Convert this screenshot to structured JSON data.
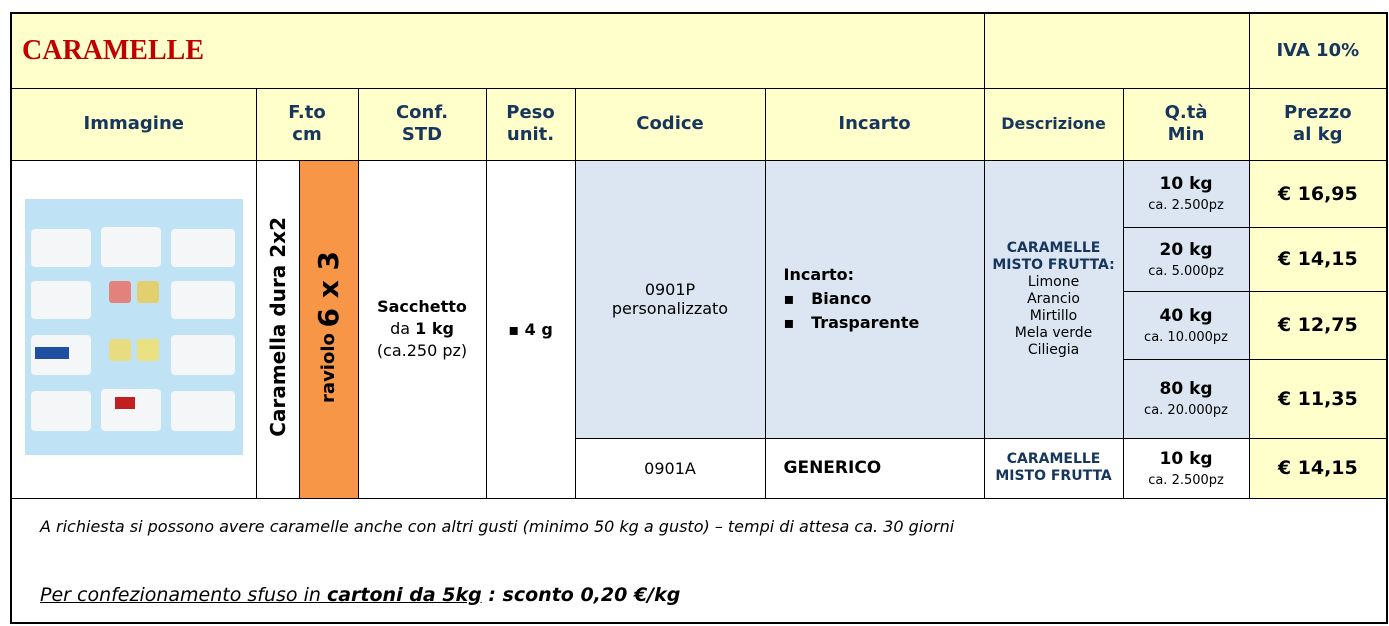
{
  "header": {
    "title": "CARAMELLE",
    "vat": "IVA 10%"
  },
  "table": {
    "columns": [
      [
        "Immagine"
      ],
      [
        "F.to",
        "cm"
      ],
      [
        "Conf.",
        "STD"
      ],
      [
        "Peso",
        "unit."
      ],
      [
        "Codice"
      ],
      [
        "Incarto"
      ],
      [
        "Descrizione"
      ],
      [
        "Q.tà",
        "Min"
      ],
      [
        "Prezzo",
        "al kg"
      ]
    ],
    "format": {
      "type": "Caramella dura 2x2",
      "shape": "raviolo",
      "size": "6 x 3"
    },
    "package": {
      "name": "Sacchetto",
      "prefix": "da",
      "amount": "1 kg",
      "pieces": "(ca.250 pz)"
    },
    "unit_weight": "4 g",
    "groups": [
      {
        "code": [
          "0901P",
          "personalizzato"
        ],
        "wrapping": {
          "label": "Incarto:",
          "options": [
            "Bianco",
            "Trasparente"
          ]
        },
        "description": {
          "title": [
            "CARAMELLE",
            "MISTO FRUTTA:"
          ],
          "flavors": [
            "Limone",
            "Arancio",
            "Mirtillo",
            "Mela verde",
            "Ciliegia"
          ]
        },
        "tiers": [
          {
            "qty": "10 kg",
            "pieces": "ca. 2.500pz",
            "price": "€ 16,95"
          },
          {
            "qty": "20 kg",
            "pieces": "ca. 5.000pz",
            "price": "€ 14,15"
          },
          {
            "qty": "40 kg",
            "pieces": "ca. 10.000pz",
            "price": "€ 12,75"
          },
          {
            "qty": "80 kg",
            "pieces": "ca. 20.000pz",
            "price": "€ 11,35"
          }
        ]
      },
      {
        "code": [
          "0901A"
        ],
        "wrapping": {
          "label": "GENERICO"
        },
        "description": {
          "title": [
            "CARAMELLE",
            "MISTO FRUTTA"
          ]
        },
        "tiers": [
          {
            "qty": "10 kg",
            "pieces": "ca. 2.500pz",
            "price": "€ 14,15"
          }
        ]
      }
    ]
  },
  "footer": {
    "note": "A richiesta si possono avere caramelle anche con altri gusti (minimo 50 kg a gusto) – tempi di attesa ca. 30 giorni",
    "offer": [
      "Per confezionamento sfuso in ",
      "cartoni da 5kg",
      " : sconto 0,20 €/kg"
    ]
  }
}
